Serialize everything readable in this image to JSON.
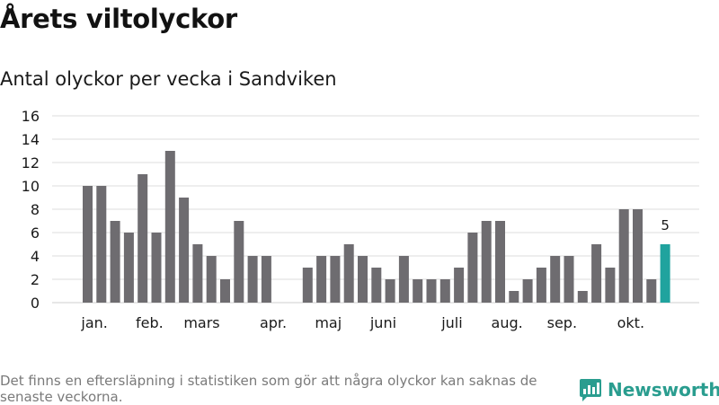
{
  "header": {
    "title": "Årets viltolyckor",
    "subtitle": "Antal olyckor per vecka i Sandviken"
  },
  "footer": {
    "note": "Det finns en eftersläpning i statistiken som gör att några olyckor kan saknas de senaste veckorna.",
    "brand": "Newsworthy"
  },
  "colors": {
    "bar": "#6e6c70",
    "highlight": "#20a39e",
    "grid": "#dddddd",
    "brand": "#2a9d8f"
  },
  "chart_data": {
    "type": "bar",
    "title": "Årets viltolyckor",
    "subtitle": "Antal olyckor per vecka i Sandviken",
    "xlabel": "",
    "ylabel": "",
    "ylim": [
      0,
      16
    ],
    "yticks": [
      0,
      2,
      4,
      6,
      8,
      10,
      12,
      14,
      16
    ],
    "grid": true,
    "weeks": [
      1,
      2,
      3,
      4,
      5,
      6,
      7,
      8,
      9,
      10,
      11,
      12,
      13,
      14,
      15,
      16,
      17,
      18,
      19,
      20,
      21,
      22,
      23,
      24,
      25,
      26,
      27,
      28,
      29,
      30,
      31,
      32,
      33,
      34,
      35,
      36,
      37,
      38,
      39,
      40,
      41,
      42,
      43
    ],
    "values": [
      10,
      10,
      7,
      6,
      11,
      6,
      13,
      9,
      5,
      4,
      2,
      7,
      4,
      4,
      null,
      null,
      3,
      4,
      4,
      5,
      4,
      3,
      2,
      4,
      2,
      2,
      2,
      3,
      6,
      7,
      7,
      1,
      2,
      3,
      4,
      4,
      1,
      5,
      3,
      8,
      8,
      2,
      5
    ],
    "highlight_index": 42,
    "highlight_label": "5",
    "month_labels": [
      {
        "label": "jan.",
        "week": 1.5
      },
      {
        "label": "feb.",
        "week": 5.5
      },
      {
        "label": "mars",
        "week": 9.3
      },
      {
        "label": "apr.",
        "week": 14.5
      },
      {
        "label": "maj",
        "week": 18.5
      },
      {
        "label": "juni",
        "week": 22.5
      },
      {
        "label": "juli",
        "week": 27.5
      },
      {
        "label": "aug.",
        "week": 31.5
      },
      {
        "label": "sep.",
        "week": 35.5
      },
      {
        "label": "okt.",
        "week": 40.5
      }
    ]
  }
}
